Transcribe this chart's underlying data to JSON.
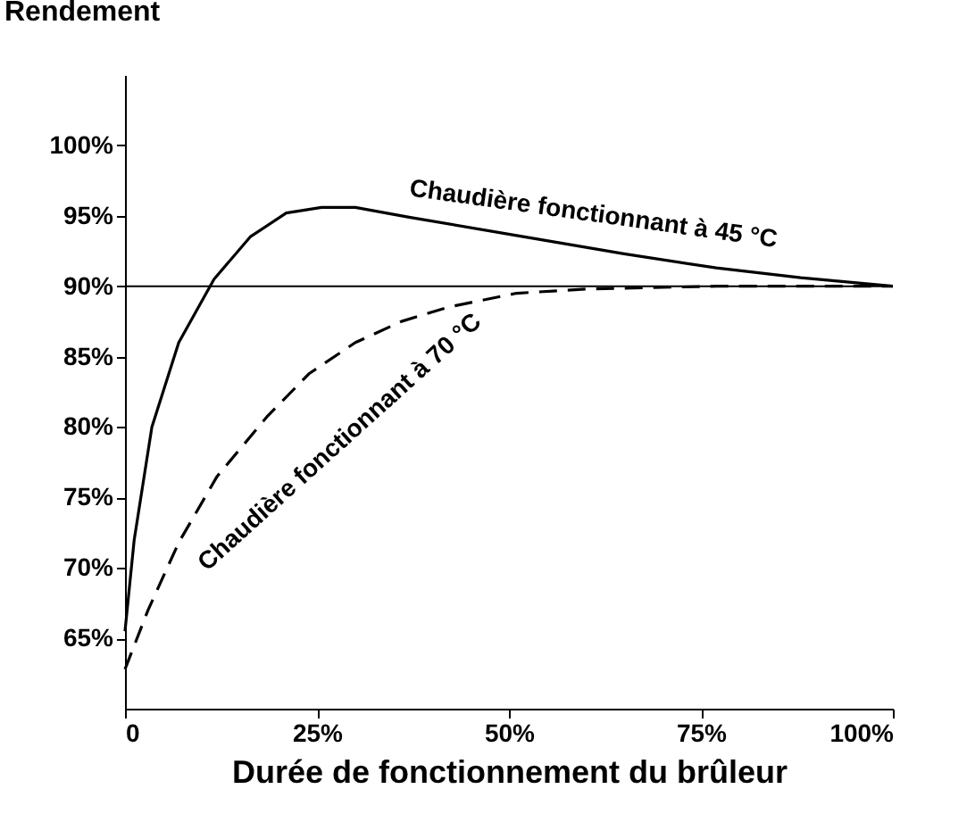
{
  "chart_data": {
    "type": "line",
    "ylabel": "Rendement",
    "xlabel": "Durée de fonctionnement du brûleur",
    "xlim": [
      0,
      100
    ],
    "ylim": [
      60,
      105
    ],
    "xticks": [
      0,
      {
        "value": 25,
        "label": "25%"
      },
      {
        "value": 50,
        "label": "50%"
      },
      {
        "value": 75,
        "label": "75%"
      },
      {
        "value": 100,
        "label": "100%"
      }
    ],
    "yticks": [
      {
        "value": 65,
        "label": "65%"
      },
      {
        "value": 70,
        "label": "70%"
      },
      {
        "value": 75,
        "label": "75%"
      },
      {
        "value": 80,
        "label": "80%"
      },
      {
        "value": 85,
        "label": "85%"
      },
      {
        "value": 90,
        "label": "90%"
      },
      {
        "value": 95,
        "label": "95%"
      },
      {
        "value": 100,
        "label": "100%"
      }
    ],
    "grid": false,
    "marker": "none",
    "ref_lines": [
      {
        "axis": "y",
        "value": 90,
        "color": "#000000",
        "line_style": "solid"
      }
    ],
    "series": [
      {
        "name": "Chaudière fonctionnant à 45 °C",
        "color": "#000000",
        "line_style": "solid",
        "x": [
          0,
          1.2,
          3.5,
          7,
          11.6,
          16.3,
          21,
          25.6,
          30,
          37,
          51,
          65,
          77,
          88,
          100
        ],
        "values": [
          65.5,
          72,
          80,
          86,
          90.5,
          93.5,
          95.2,
          95.6,
          95.6,
          94.9,
          93.6,
          92.3,
          91.3,
          90.6,
          90
        ]
      },
      {
        "name": "Chaudière fonctionnant à 70 °C",
        "color": "#000000",
        "line_style": "dashed",
        "x": [
          0,
          3,
          7,
          12,
          18.6,
          24,
          30,
          36,
          42,
          51,
          60,
          77,
          100
        ],
        "values": [
          62.8,
          67,
          71.8,
          76.5,
          80.8,
          83.8,
          86,
          87.5,
          88.5,
          89.5,
          89.8,
          90,
          90
        ]
      }
    ]
  }
}
